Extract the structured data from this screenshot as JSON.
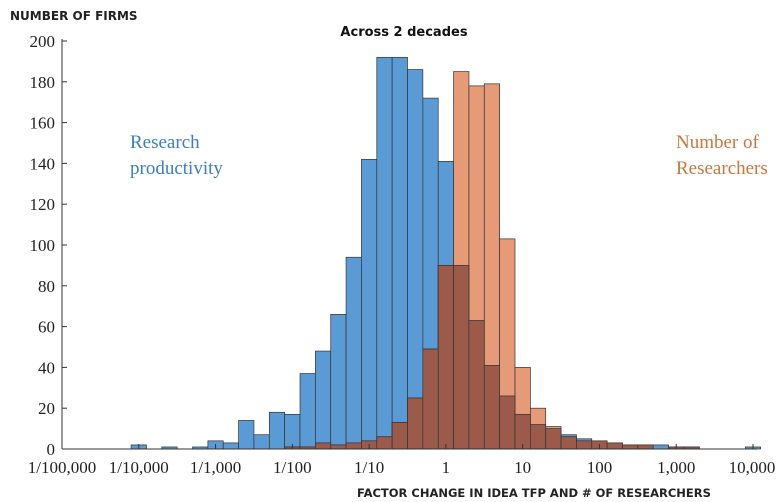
{
  "chart_data": {
    "type": "bar",
    "title": "Across 2 decades",
    "ylabel": "NUMBER OF FIRMS",
    "xlabel": "FACTOR CHANGE IN IDEA TFP AND # OF RESEARCHERS",
    "x_scale": "log",
    "xlim": [
      1e-05,
      10000
    ],
    "ylim": [
      0,
      200
    ],
    "y_ticks": [
      0,
      20,
      40,
      60,
      80,
      100,
      120,
      140,
      160,
      180,
      200
    ],
    "x_tick_values": [
      1e-05,
      0.0001,
      0.001,
      0.01,
      0.1,
      1,
      10,
      100,
      1000,
      10000
    ],
    "x_tick_labels": [
      "1/100,000",
      "1/10,000",
      "1/1,000",
      "1/100",
      "1/10",
      "1",
      "10",
      "100",
      "1,000",
      "10,000"
    ],
    "bin_width_log10": 0.2,
    "grid": false,
    "series": [
      {
        "name": "Research productivity",
        "color": "#5b9bd5",
        "bins": [
          {
            "x": 0.0001,
            "count": 2
          },
          {
            "x": 0.000251,
            "count": 1
          },
          {
            "x": 0.000631,
            "count": 1
          },
          {
            "x": 0.001,
            "count": 4
          },
          {
            "x": 0.001585,
            "count": 3
          },
          {
            "x": 0.002512,
            "count": 14
          },
          {
            "x": 0.003981,
            "count": 7
          },
          {
            "x": 0.00631,
            "count": 18
          },
          {
            "x": 0.01,
            "count": 17
          },
          {
            "x": 0.01585,
            "count": 37
          },
          {
            "x": 0.02512,
            "count": 48
          },
          {
            "x": 0.03981,
            "count": 66
          },
          {
            "x": 0.0631,
            "count": 94
          },
          {
            "x": 0.1,
            "count": 142
          },
          {
            "x": 0.1585,
            "count": 192
          },
          {
            "x": 0.2512,
            "count": 192
          },
          {
            "x": 0.3981,
            "count": 186
          },
          {
            "x": 0.631,
            "count": 172
          },
          {
            "x": 1,
            "count": 141
          },
          {
            "x": 1.585,
            "count": 90
          },
          {
            "x": 2.512,
            "count": 63
          },
          {
            "x": 3.981,
            "count": 41
          },
          {
            "x": 6.31,
            "count": 26
          },
          {
            "x": 10,
            "count": 17
          },
          {
            "x": 15.85,
            "count": 12
          },
          {
            "x": 25.12,
            "count": 10
          },
          {
            "x": 39.81,
            "count": 7
          },
          {
            "x": 63.1,
            "count": 5
          },
          {
            "x": 100,
            "count": 4
          },
          {
            "x": 158.5,
            "count": 3
          },
          {
            "x": 251.2,
            "count": 2
          },
          {
            "x": 398.1,
            "count": 2
          },
          {
            "x": 631,
            "count": 2
          },
          {
            "x": 1000,
            "count": 1
          },
          {
            "x": 1585,
            "count": 1
          },
          {
            "x": 10000,
            "count": 1
          }
        ]
      },
      {
        "name": "Number of Researchers",
        "color": "#e59a78",
        "bins": [
          {
            "x": 0.01,
            "count": 1
          },
          {
            "x": 0.01585,
            "count": 1
          },
          {
            "x": 0.02512,
            "count": 3
          },
          {
            "x": 0.03981,
            "count": 2
          },
          {
            "x": 0.0631,
            "count": 3
          },
          {
            "x": 0.1,
            "count": 4
          },
          {
            "x": 0.1585,
            "count": 6
          },
          {
            "x": 0.2512,
            "count": 13
          },
          {
            "x": 0.3981,
            "count": 25
          },
          {
            "x": 0.631,
            "count": 49
          },
          {
            "x": 1,
            "count": 90
          },
          {
            "x": 1.585,
            "count": 185
          },
          {
            "x": 2.512,
            "count": 178
          },
          {
            "x": 3.981,
            "count": 179
          },
          {
            "x": 6.31,
            "count": 103
          },
          {
            "x": 10,
            "count": 40
          },
          {
            "x": 15.85,
            "count": 20
          },
          {
            "x": 25.12,
            "count": 11
          },
          {
            "x": 39.81,
            "count": 6
          },
          {
            "x": 63.1,
            "count": 4
          },
          {
            "x": 100,
            "count": 4
          },
          {
            "x": 158.5,
            "count": 3
          },
          {
            "x": 251.2,
            "count": 2
          },
          {
            "x": 398.1,
            "count": 2
          },
          {
            "x": 1000,
            "count": 1
          },
          {
            "x": 1585,
            "count": 1
          }
        ]
      }
    ],
    "annotations": [
      {
        "lines": [
          "Research",
          "productivity"
        ],
        "color": "#3a7fbf"
      },
      {
        "lines": [
          "Number of",
          "Researchers"
        ],
        "color": "#c9763f"
      }
    ]
  }
}
